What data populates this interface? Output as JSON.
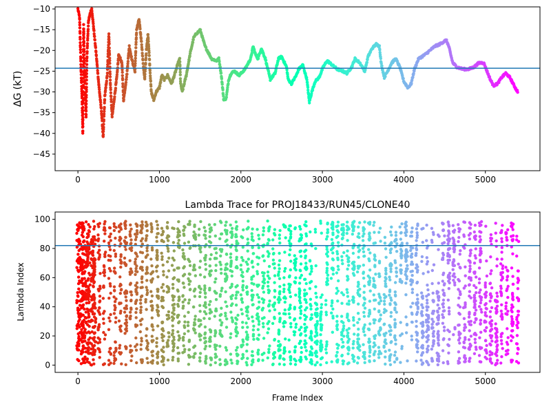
{
  "chart_data": [
    {
      "type": "scatter",
      "title": "",
      "xlabel": "",
      "ylabel": "ΔG (kT)",
      "xlim": [
        -280,
        5670
      ],
      "ylim": [
        -49,
        -9.5
      ],
      "x_ticks": [
        0,
        1000,
        2000,
        3000,
        4000,
        5000
      ],
      "x_tick_labels": [
        "0",
        "1000",
        "2000",
        "3000",
        "4000",
        "5000"
      ],
      "y_ticks": [
        -45,
        -40,
        -35,
        -30,
        -25,
        -20,
        -15,
        -10
      ],
      "y_tick_labels": [
        "−45",
        "−40",
        "−35",
        "−30",
        "−25",
        "−20",
        "−15",
        "−10"
      ],
      "hline": {
        "y": -24.3,
        "color": "#1f77b4"
      },
      "colormap": "rainbow",
      "grid": false,
      "n_frames": 5400,
      "series_path": [
        [
          0,
          -10
        ],
        [
          20,
          -12
        ],
        [
          40,
          -26
        ],
        [
          50,
          -31
        ],
        [
          60,
          -40
        ],
        [
          70,
          -14
        ],
        [
          80,
          -24
        ],
        [
          90,
          -30
        ],
        [
          100,
          -36
        ],
        [
          110,
          -22
        ],
        [
          120,
          -17
        ],
        [
          130,
          -13
        ],
        [
          150,
          -11
        ],
        [
          170,
          -10
        ],
        [
          220,
          -20
        ],
        [
          260,
          -29
        ],
        [
          290,
          -35
        ],
        [
          310,
          -41
        ],
        [
          330,
          -31
        ],
        [
          360,
          -26
        ],
        [
          380,
          -16
        ],
        [
          400,
          -29
        ],
        [
          420,
          -36
        ],
        [
          450,
          -31
        ],
        [
          480,
          -26
        ],
        [
          500,
          -21
        ],
        [
          540,
          -23
        ],
        [
          560,
          -32
        ],
        [
          600,
          -26
        ],
        [
          630,
          -19
        ],
        [
          660,
          -22
        ],
        [
          700,
          -25
        ],
        [
          720,
          -15
        ],
        [
          750,
          -12.5
        ],
        [
          780,
          -18
        ],
        [
          800,
          -23
        ],
        [
          820,
          -27
        ],
        [
          840,
          -20
        ],
        [
          860,
          -16
        ],
        [
          880,
          -23
        ],
        [
          900,
          -30
        ],
        [
          930,
          -32
        ],
        [
          960,
          -30
        ],
        [
          1000,
          -29
        ],
        [
          1030,
          -26
        ],
        [
          1060,
          -27
        ],
        [
          1100,
          -26
        ],
        [
          1150,
          -28
        ],
        [
          1200,
          -25
        ],
        [
          1230,
          -23
        ],
        [
          1250,
          -22
        ],
        [
          1260,
          -28
        ],
        [
          1280,
          -30
        ],
        [
          1330,
          -26
        ],
        [
          1380,
          -20.5
        ],
        [
          1420,
          -17
        ],
        [
          1450,
          -16
        ],
        [
          1480,
          -15.5
        ],
        [
          1500,
          -15
        ],
        [
          1530,
          -17
        ],
        [
          1560,
          -19
        ],
        [
          1600,
          -20.5
        ],
        [
          1640,
          -22
        ],
        [
          1700,
          -22.5
        ],
        [
          1730,
          -22
        ],
        [
          1760,
          -26
        ],
        [
          1790,
          -32
        ],
        [
          1820,
          -31.5
        ],
        [
          1850,
          -27
        ],
        [
          1880,
          -25.5
        ],
        [
          1920,
          -25
        ],
        [
          1980,
          -26
        ],
        [
          2050,
          -24.5
        ],
        [
          2120,
          -22
        ],
        [
          2150,
          -19
        ],
        [
          2180,
          -21
        ],
        [
          2210,
          -22
        ],
        [
          2250,
          -19.5
        ],
        [
          2300,
          -22
        ],
        [
          2360,
          -27
        ],
        [
          2420,
          -25.5
        ],
        [
          2460,
          -22
        ],
        [
          2500,
          -21.5
        ],
        [
          2560,
          -24
        ],
        [
          2580,
          -27
        ],
        [
          2620,
          -28
        ],
        [
          2680,
          -26
        ],
        [
          2710,
          -24.5
        ],
        [
          2760,
          -23.5
        ],
        [
          2810,
          -27
        ],
        [
          2840,
          -32.5
        ],
        [
          2870,
          -30
        ],
        [
          2910,
          -27.5
        ],
        [
          2960,
          -26.5
        ],
        [
          3010,
          -24
        ],
        [
          3060,
          -22.5
        ],
        [
          3120,
          -23.5
        ],
        [
          3180,
          -24.5
        ],
        [
          3250,
          -25
        ],
        [
          3300,
          -25.5
        ],
        [
          3360,
          -24
        ],
        [
          3400,
          -22
        ],
        [
          3460,
          -23
        ],
        [
          3520,
          -25
        ],
        [
          3560,
          -21.5
        ],
        [
          3610,
          -19.5
        ],
        [
          3660,
          -18.5
        ],
        [
          3700,
          -19
        ],
        [
          3720,
          -23
        ],
        [
          3760,
          -26.5
        ],
        [
          3800,
          -25
        ],
        [
          3850,
          -23
        ],
        [
          3900,
          -22
        ],
        [
          3950,
          -24
        ],
        [
          4000,
          -27.5
        ],
        [
          4050,
          -29
        ],
        [
          4090,
          -28
        ],
        [
          4130,
          -24.5
        ],
        [
          4180,
          -22
        ],
        [
          4260,
          -21
        ],
        [
          4320,
          -20
        ],
        [
          4380,
          -19
        ],
        [
          4440,
          -18.5
        ],
        [
          4480,
          -18
        ],
        [
          4520,
          -17.5
        ],
        [
          4550,
          -19
        ],
        [
          4600,
          -23
        ],
        [
          4650,
          -24
        ],
        [
          4720,
          -24.5
        ],
        [
          4800,
          -24.5
        ],
        [
          4860,
          -24
        ],
        [
          4920,
          -23
        ],
        [
          4980,
          -23
        ],
        [
          5020,
          -25
        ],
        [
          5060,
          -27
        ],
        [
          5100,
          -28.5
        ],
        [
          5150,
          -28
        ],
        [
          5200,
          -26.5
        ],
        [
          5250,
          -25.5
        ],
        [
          5300,
          -26.5
        ],
        [
          5340,
          -28
        ],
        [
          5380,
          -29.5
        ],
        [
          5400,
          -30
        ]
      ]
    },
    {
      "type": "scatter",
      "title": "Lambda Trace for PROJ18433/RUN45/CLONE40",
      "xlabel": "Frame Index",
      "ylabel": "Lambda Index",
      "xlim": [
        -280,
        5670
      ],
      "ylim": [
        -5,
        105
      ],
      "x_ticks": [
        0,
        1000,
        2000,
        3000,
        4000,
        5000
      ],
      "x_tick_labels": [
        "0",
        "1000",
        "2000",
        "3000",
        "4000",
        "5000"
      ],
      "y_ticks": [
        0,
        20,
        40,
        60,
        80,
        100
      ],
      "y_tick_labels": [
        "0",
        "20",
        "40",
        "60",
        "80",
        "100"
      ],
      "hline": {
        "y": 82,
        "color": "#1f77b4"
      },
      "colormap": "rainbow",
      "grid": false,
      "n_frames": 5400,
      "value_range": [
        0,
        99
      ],
      "stripe_spacing": 65,
      "low_band_regions": [
        [
          2850,
          3050
        ],
        [
          4170,
          4450
        ],
        [
          4950,
          5150
        ]
      ],
      "high_band_regions": [
        [
          3050,
          3150
        ],
        [
          3900,
          4100
        ],
        [
          4500,
          4650
        ],
        [
          5000,
          5100
        ]
      ]
    }
  ]
}
